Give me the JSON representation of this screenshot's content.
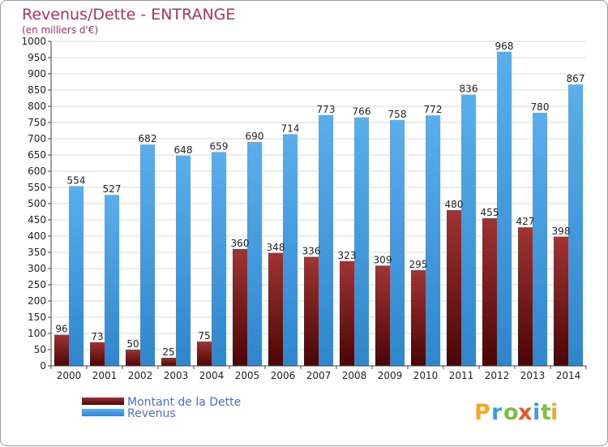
{
  "title": "Revenus/Dette - ENTRANGE",
  "subtitle": "(en milliers d'€)",
  "legend": {
    "items": [
      {
        "label": "Montant de la Dette",
        "color": "#7a1c1c"
      },
      {
        "label": "Revenus",
        "color": "#4aa3e6"
      }
    ]
  },
  "logo": {
    "text": "Proxiti",
    "letters": [
      "P",
      "r",
      "o",
      "x",
      "i",
      "t",
      "i"
    ],
    "colors": [
      "#f5a623",
      "#3aa0e0",
      "#7cc242",
      "#e8542c",
      "#3aa0e0",
      "#7cc242",
      "#f5a623"
    ]
  },
  "chart_data": {
    "type": "bar",
    "categories": [
      "2000",
      "2001",
      "2002",
      "2003",
      "2004",
      "2005",
      "2006",
      "2007",
      "2008",
      "2009",
      "2010",
      "2011",
      "2012",
      "2013",
      "2014"
    ],
    "series": [
      {
        "name": "Montant de la Dette",
        "values": [
          96,
          73,
          50,
          25,
          75,
          360,
          348,
          336,
          323,
          309,
          295,
          480,
          455,
          427,
          398
        ],
        "color": "#7a1c1c"
      },
      {
        "name": "Revenus",
        "values": [
          554,
          527,
          682,
          648,
          659,
          690,
          714,
          773,
          766,
          758,
          772,
          836,
          968,
          780,
          867
        ],
        "color": "#4aa3e6"
      }
    ],
    "ylim": [
      0,
      1000
    ],
    "ytick_step": 50,
    "grid": true,
    "legend_position": "bottom-left"
  }
}
